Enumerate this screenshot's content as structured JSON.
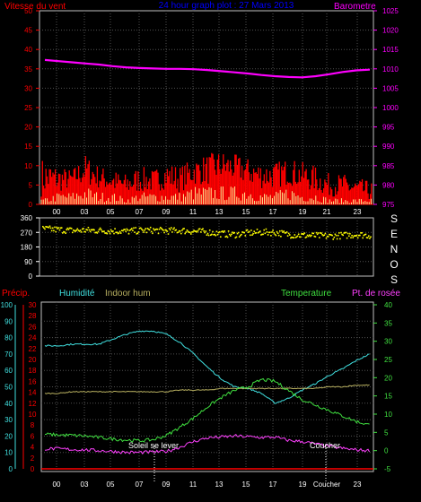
{
  "chart_data": [
    {
      "type": "line",
      "title": "24 hour graph plot : 27 Mars 2013",
      "left_axis_label": "Vitesse du vent",
      "right_axis_label": "Barometre",
      "x_ticks": [
        "00",
        "03",
        "05",
        "07",
        "09",
        "11",
        "13",
        "15",
        "17",
        "19",
        "21",
        "23"
      ],
      "left_ylim": [
        0,
        50
      ],
      "left_ticks": [
        0,
        5,
        10,
        15,
        20,
        25,
        30,
        35,
        40,
        45,
        50
      ],
      "right_ylim": [
        975,
        1025
      ],
      "right_ticks": [
        975,
        980,
        985,
        990,
        995,
        1000,
        1005,
        1010,
        1015,
        1020,
        1025
      ],
      "grid": true,
      "series": [
        {
          "color": "#ff00ff",
          "axis": "right",
          "x": [
            0,
            1,
            2,
            3,
            4,
            5,
            6,
            7,
            8,
            9,
            10,
            11,
            12,
            13,
            14,
            15,
            16,
            17,
            18,
            19,
            20,
            21,
            22,
            23,
            24
          ],
          "y": [
            1012.3,
            1012.0,
            1011.7,
            1011.4,
            1011.1,
            1010.7,
            1010.4,
            1010.2,
            1010.1,
            1010.0,
            1010.0,
            1009.9,
            1009.7,
            1009.4,
            1009.1,
            1008.8,
            1008.4,
            1008.1,
            1007.9,
            1007.8,
            1008.1,
            1008.6,
            1009.2,
            1009.6,
            1009.8
          ]
        },
        {
          "color": "#ff0000",
          "axis": "left",
          "x": [
            0,
            1,
            2,
            3,
            4,
            5,
            6,
            7,
            8,
            9,
            10,
            11,
            12,
            13,
            14,
            15,
            16,
            17,
            18,
            19,
            20,
            21,
            22,
            23,
            24
          ],
          "y": [
            4,
            5,
            6,
            7,
            6,
            5,
            4,
            5,
            5,
            6,
            5,
            7,
            7,
            8,
            8,
            7,
            6,
            6,
            7,
            6,
            5,
            4,
            4,
            3,
            3
          ],
          "peaks": [
            11,
            9,
            8,
            12,
            9,
            8,
            7,
            9,
            8,
            10,
            9,
            11,
            12,
            13,
            12,
            11,
            10,
            10,
            11,
            10,
            9,
            7,
            7,
            6,
            5
          ]
        },
        {
          "color": "#ffffa0",
          "axis": "left",
          "x": [
            0,
            1,
            2,
            3,
            4,
            5,
            6,
            7,
            8,
            9,
            10,
            11,
            12,
            13,
            14,
            15,
            16,
            17,
            18,
            19,
            20,
            21,
            22,
            23,
            24
          ],
          "y": [
            1,
            2,
            2,
            3,
            2,
            2,
            1,
            2,
            2,
            2,
            2,
            3,
            3,
            3,
            3,
            3,
            2,
            2,
            3,
            2,
            2,
            1,
            1,
            1,
            1
          ]
        }
      ]
    },
    {
      "type": "scatter",
      "right_axis_label": "S E N O S",
      "ylim": [
        0,
        360
      ],
      "y_ticks": [
        0,
        90,
        180,
        270,
        360
      ],
      "grid": true,
      "series": [
        {
          "color": "#ffff00",
          "x": [
            0,
            1,
            2,
            3,
            4,
            5,
            6,
            7,
            8,
            9,
            10,
            11,
            12,
            13,
            14,
            15,
            16,
            17,
            18,
            19,
            20,
            21,
            22,
            23,
            24
          ],
          "y": [
            290,
            285,
            280,
            282,
            280,
            278,
            275,
            280,
            282,
            278,
            280,
            275,
            270,
            260,
            255,
            265,
            270,
            268,
            255,
            250,
            248,
            245,
            250,
            255,
            250
          ]
        }
      ]
    },
    {
      "type": "line",
      "labels": {
        "precip": "Précip.",
        "humidity": "Humidité",
        "indoor": "Indoor hum",
        "temperature": "Temperature",
        "dewpoint": "Pt. de rosée"
      },
      "x_ticks": [
        "00",
        "03",
        "05",
        "07",
        "09",
        "11",
        "13",
        "15",
        "17",
        "19",
        "Coucher",
        "23"
      ],
      "humidity_ticks": [
        0,
        10,
        20,
        30,
        40,
        50,
        60,
        70,
        80,
        90,
        100
      ],
      "precip_ticks": [
        0,
        2,
        4,
        6,
        8,
        10,
        12,
        14,
        16,
        18,
        20,
        22,
        24,
        26,
        28,
        30
      ],
      "temp_ylim": [
        -5,
        40
      ],
      "temp_ticks": [
        -5,
        0,
        5,
        10,
        15,
        20,
        25,
        30,
        35,
        40
      ],
      "annotations": {
        "sunrise": "Soleil se lever",
        "sunset": "Coucher"
      },
      "grid": true,
      "series": [
        {
          "color": "#40e0e0",
          "axis": "humidity",
          "x": [
            0,
            1,
            2,
            3,
            4,
            5,
            6,
            7,
            8,
            9,
            10,
            11,
            12,
            13,
            14,
            15,
            16,
            17,
            18,
            19,
            20,
            21,
            22,
            23,
            24
          ],
          "y": [
            75,
            75,
            76,
            76,
            76,
            79,
            82,
            84,
            84,
            82,
            77,
            70,
            62,
            55,
            50,
            49,
            46,
            40,
            43,
            48,
            52,
            57,
            61,
            66,
            70
          ]
        },
        {
          "color": "#b8b060",
          "axis": "humidity",
          "x": [
            0,
            1,
            2,
            3,
            4,
            5,
            6,
            7,
            8,
            9,
            10,
            11,
            12,
            13,
            14,
            15,
            16,
            17,
            18,
            19,
            20,
            21,
            22,
            23,
            24
          ],
          "y": [
            46,
            46,
            47,
            47,
            47,
            47,
            47,
            47,
            47,
            47,
            48,
            48,
            48,
            49,
            49,
            49,
            49,
            49,
            49,
            49,
            49,
            50,
            50,
            51,
            51
          ]
        },
        {
          "color": "#40e040",
          "axis": "temp",
          "x": [
            0,
            1,
            2,
            3,
            4,
            5,
            6,
            7,
            8,
            9,
            10,
            11,
            12,
            13,
            14,
            15,
            16,
            17,
            18,
            19,
            20,
            21,
            22,
            23,
            24
          ],
          "y": [
            4.5,
            4.3,
            4.2,
            4.0,
            3.6,
            3.2,
            2.9,
            2.7,
            3.0,
            4.2,
            6.5,
            9.0,
            12.0,
            14.5,
            16.5,
            17.5,
            19.5,
            19.0,
            16.5,
            14.0,
            12.5,
            11.0,
            9.5,
            8.0,
            7.0
          ]
        },
        {
          "color": "#ff40ff",
          "axis": "temp",
          "x": [
            0,
            1,
            2,
            3,
            4,
            5,
            6,
            7,
            8,
            9,
            10,
            11,
            12,
            13,
            14,
            15,
            16,
            17,
            18,
            19,
            20,
            21,
            22,
            23,
            24
          ],
          "y": [
            0.5,
            0.5,
            0.3,
            0.2,
            0.0,
            -0.2,
            -0.5,
            -0.5,
            -0.4,
            -0.2,
            1.0,
            2.5,
            3.5,
            3.7,
            4.0,
            3.8,
            3.6,
            3.7,
            2.8,
            2.5,
            1.8,
            1.2,
            0.6,
            0.2,
            0.0
          ]
        },
        {
          "color": "#ff0000",
          "axis": "precip",
          "x": [
            0,
            24
          ],
          "y": [
            0,
            0
          ]
        }
      ]
    }
  ]
}
